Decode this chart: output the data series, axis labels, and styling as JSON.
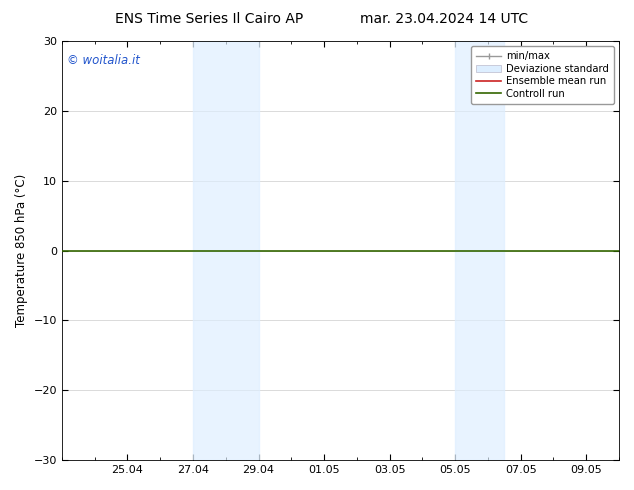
{
  "title_left": "ENS Time Series Il Cairo AP",
  "title_right": "mar. 23.04.2024 14 UTC",
  "ylabel": "Temperature 850 hPa (°C)",
  "ylim": [
    -30,
    30
  ],
  "yticks": [
    -30,
    -20,
    -10,
    0,
    10,
    20,
    30
  ],
  "xtick_labels": [
    "25.04",
    "27.04",
    "29.04",
    "01.05",
    "03.05",
    "05.05",
    "07.05",
    "09.05"
  ],
  "shaded_bands": [
    {
      "day_start": 4,
      "day_end": 6
    },
    {
      "day_start": 12,
      "day_end": 14
    }
  ],
  "hline_y": 0,
  "hline_color": "#336600",
  "hline_lw": 1.2,
  "copyright_text": "© woitalia.it",
  "copyright_color": "#2255cc",
  "legend_labels": [
    "min/max",
    "Deviazione standard",
    "Ensemble mean run",
    "Controll run"
  ],
  "legend_colors_line": [
    "#aaaaaa",
    "#bbccdd",
    "#cc2222",
    "#336600"
  ],
  "bg_color": "#ffffff",
  "plot_bg_color": "#ffffff",
  "grid_color": "#cccccc",
  "shade_color": "#ddeeff",
  "shade_alpha": 0.65,
  "title_fontsize": 10,
  "label_fontsize": 8.5,
  "tick_fontsize": 8
}
